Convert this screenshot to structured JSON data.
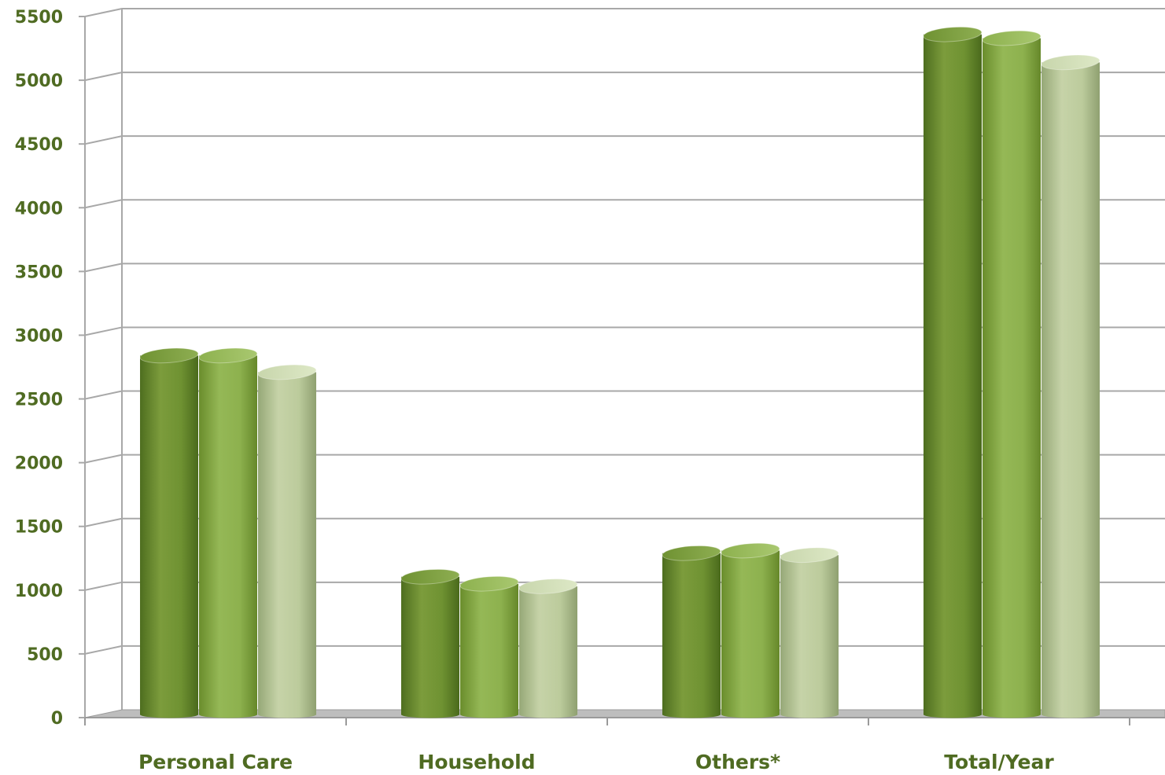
{
  "chart_data": {
    "type": "bar",
    "title": "",
    "xlabel": "",
    "ylabel": "",
    "categories": [
      "Personal Care",
      "Household",
      "Others*",
      "Total/Year"
    ],
    "series": [
      {
        "values": [
          2840,
          1105,
          1290,
          5360
        ]
      },
      {
        "values": [
          2840,
          1050,
          1310,
          5330
        ]
      },
      {
        "values": [
          2710,
          1030,
          1275,
          5140
        ]
      }
    ],
    "y_ticks": [
      "0",
      "500",
      "1000",
      "1500",
      "2000",
      "2500",
      "3000",
      "3500",
      "4000",
      "4500",
      "5000",
      "5500"
    ],
    "ylim": [
      0,
      5500
    ],
    "grid": true,
    "legend": "none",
    "colors": {
      "series_1": "#6f9232",
      "series_2": "#8db14e",
      "series_3": "#bccb9c",
      "labels": "#4f6b22",
      "grid": "#a8a8a8"
    }
  }
}
